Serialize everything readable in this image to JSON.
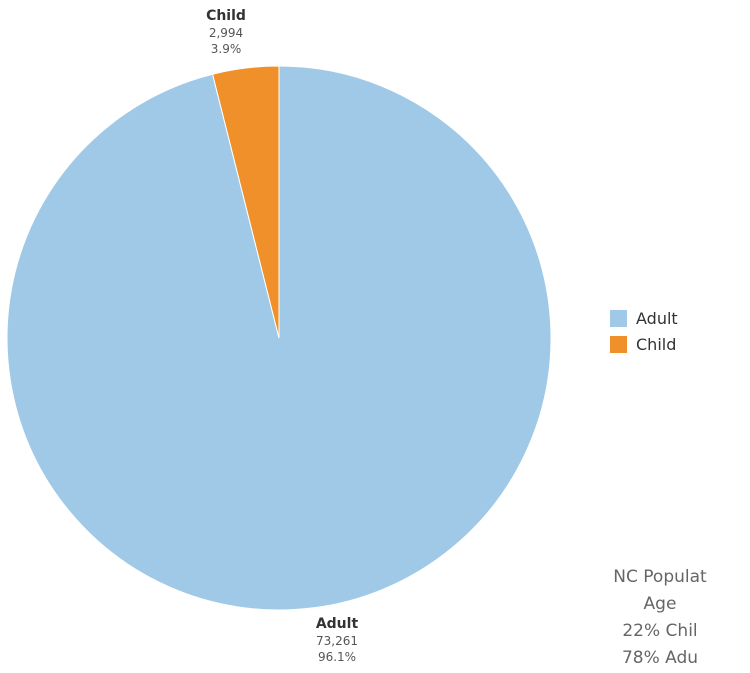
{
  "chart_data": {
    "type": "pie",
    "categories": [
      "Adult",
      "Child"
    ],
    "values": [
      73261,
      2994
    ],
    "percent_labels": [
      "96.1%",
      "3.9%"
    ],
    "value_labels": [
      "73,261",
      "2,994"
    ],
    "colors": [
      "#9fc9e6",
      "#f0902a"
    ],
    "legend": [
      "Adult",
      "Child"
    ],
    "legend_position": "right"
  },
  "note": {
    "lines": [
      "NC Populat",
      "Age",
      "22% Chil",
      "78% Adu"
    ]
  }
}
